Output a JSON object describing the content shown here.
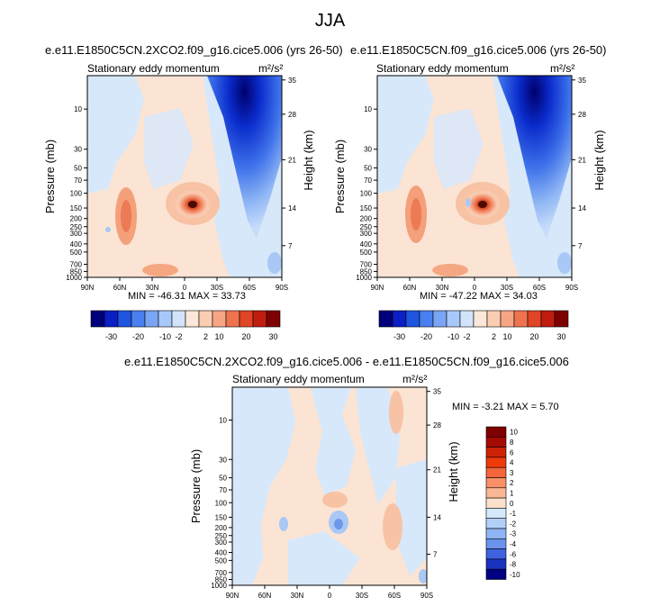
{
  "figure": {
    "title": "JJA"
  },
  "chart_data": [
    {
      "type": "heatmap",
      "title": "e.e11.E1850C5CN.2XCO2.f09_g16.cice5.006 (yrs 26-50)",
      "subtitle_left": "Stationary eddy momentum",
      "units": "m²/s²",
      "ylabel": "Pressure (mb)",
      "ylabel_right": "Height (km)",
      "x_ticks": [
        "90N",
        "60N",
        "30N",
        "0",
        "30S",
        "60S",
        "90S"
      ],
      "y_ticks": [
        "10",
        "30",
        "50",
        "70",
        "100",
        "150",
        "200",
        "250",
        "300",
        "400",
        "500",
        "700",
        "850",
        "1000"
      ],
      "y_ticks_right": [
        "35",
        "28",
        "21",
        "14",
        "7"
      ],
      "ylim": [
        1000,
        4
      ],
      "min": -46.31,
      "max": 33.73,
      "min_text": "MIN = -46.31   MAX = 33.73",
      "colorbar_levels": [
        "-30",
        "-20",
        "-10",
        "-2",
        "2",
        "10",
        "20",
        "30"
      ]
    },
    {
      "type": "heatmap",
      "title": "e.e11.E1850C5CN.f09_g16.cice5.006 (yrs 26-50)",
      "subtitle_left": "Stationary eddy momentum",
      "units": "m²/s²",
      "ylabel": "Pressure (mb)",
      "ylabel_right": "Height (km)",
      "x_ticks": [
        "90N",
        "60N",
        "30N",
        "0",
        "30S",
        "60S",
        "90S"
      ],
      "y_ticks": [
        "10",
        "30",
        "50",
        "70",
        "100",
        "150",
        "200",
        "250",
        "300",
        "400",
        "500",
        "700",
        "850",
        "1000"
      ],
      "y_ticks_right": [
        "35",
        "28",
        "21",
        "14",
        "7"
      ],
      "ylim": [
        1000,
        4
      ],
      "min": -47.22,
      "max": 34.03,
      "min_text": "MIN = -47.22   MAX = 34.03",
      "colorbar_levels": [
        "-30",
        "-20",
        "-10",
        "-2",
        "2",
        "10",
        "20",
        "30"
      ]
    },
    {
      "type": "heatmap",
      "title": "e.e11.E1850C5CN.2XCO2.f09_g16.cice5.006 - e.e11.E1850C5CN.f09_g16.cice5.006",
      "subtitle_left": "Stationary eddy momentum",
      "units": "m²/s²",
      "ylabel": "Pressure (mb)",
      "ylabel_right": "Height (km)",
      "x_ticks": [
        "90N",
        "60N",
        "30N",
        "0",
        "30S",
        "60S",
        "90S"
      ],
      "y_ticks": [
        "10",
        "30",
        "50",
        "70",
        "100",
        "150",
        "200",
        "250",
        "300",
        "400",
        "500",
        "700",
        "850",
        "1000"
      ],
      "y_ticks_right": [
        "35",
        "28",
        "21",
        "14",
        "7"
      ],
      "ylim": [
        1000,
        4
      ],
      "min": -3.21,
      "max": 5.7,
      "min_text": "MIN = -3.21   MAX =  5.70",
      "colorbar_levels": [
        "10",
        "8",
        "6",
        "4",
        "3",
        "2",
        "1",
        "0",
        "-1",
        "-2",
        "-3",
        "-4",
        "-6",
        "-8",
        "-10"
      ]
    }
  ],
  "colors": {
    "colorbar_a": [
      "#00007a",
      "#0a1fc4",
      "#1f55e0",
      "#4a7ff0",
      "#7aa5f5",
      "#a8c8fa",
      "#d2e4fb",
      "#fce8d8",
      "#fbcdb3",
      "#f7a585",
      "#f07350",
      "#e04526",
      "#c01d0f",
      "#7f0000"
    ],
    "colorbar_b": [
      "#7f0000",
      "#a50a03",
      "#cc2205",
      "#ef3a0c",
      "#f4653a",
      "#f79068",
      "#fab696",
      "#fde0cb",
      "#d8e8fb",
      "#b2cff8",
      "#8eb4f3",
      "#6b93ec",
      "#3f62e0",
      "#1a33c0",
      "#000080"
    ],
    "blue_light": "#d7e8fa",
    "blue_mid": "#a9c8f5",
    "peach_light": "#fbe4d4",
    "peach_mid": "#f7c3a4",
    "red_core": "#e45a2e"
  }
}
